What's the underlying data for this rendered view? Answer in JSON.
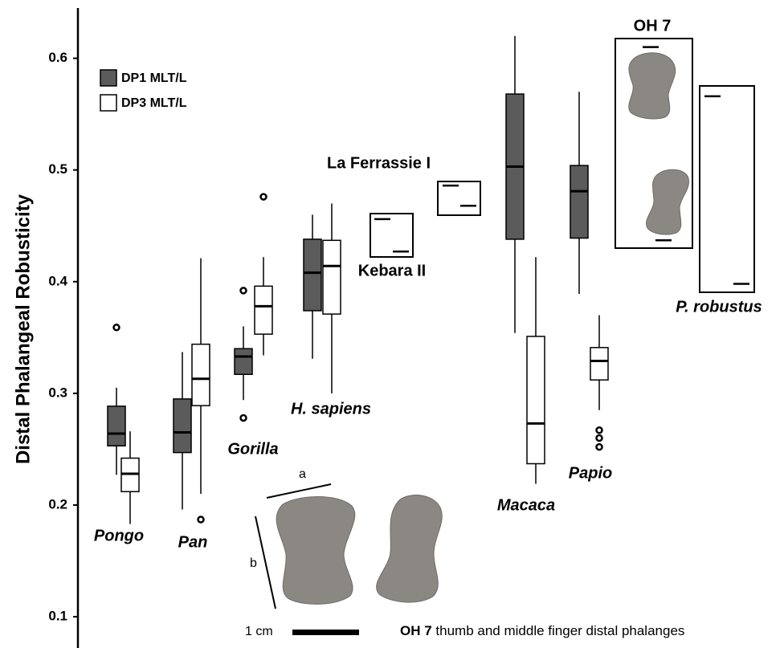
{
  "chart_data": {
    "type": "box",
    "ylabel": "Distal Phalangeal Robusticity",
    "ylim": [
      0.072,
      0.645
    ],
    "yticks": [
      0.1,
      0.2,
      0.3,
      0.4,
      0.5,
      0.6
    ],
    "categories": [
      "Pongo",
      "Pan",
      "Gorilla",
      "H. sapiens",
      "Macaca",
      "Papio"
    ],
    "series": [
      {
        "name": "DP1 MLT/L",
        "color": "#5b5b5b",
        "values": [
          {
            "whislo": 0.227,
            "q1": 0.253,
            "med": 0.264,
            "q3": 0.2885,
            "whishi": 0.305,
            "fliers": [
              0.359
            ]
          },
          {
            "whislo": 0.196,
            "q1": 0.247,
            "med": 0.265,
            "q3": 0.295,
            "whishi": 0.337,
            "fliers": []
          },
          {
            "whislo": 0.294,
            "q1": 0.317,
            "med": 0.333,
            "q3": 0.34,
            "whishi": 0.36,
            "fliers": [
              0.392,
              0.278
            ]
          },
          {
            "whislo": 0.331,
            "q1": 0.374,
            "med": 0.408,
            "q3": 0.438,
            "whishi": 0.46,
            "fliers": []
          },
          {
            "whislo": 0.354,
            "q1": 0.438,
            "med": 0.503,
            "q3": 0.568,
            "whishi": 0.62,
            "fliers": []
          },
          {
            "whislo": 0.389,
            "q1": 0.439,
            "med": 0.481,
            "q3": 0.504,
            "whishi": 0.57,
            "fliers": []
          }
        ]
      },
      {
        "name": "DP3 MLT/L",
        "color": "#ffffff",
        "values": [
          {
            "whislo": 0.183,
            "q1": 0.212,
            "med": 0.228,
            "q3": 0.242,
            "whishi": 0.266,
            "fliers": []
          },
          {
            "whislo": 0.21,
            "q1": 0.289,
            "med": 0.313,
            "q3": 0.344,
            "whishi": 0.421,
            "fliers": [
              0.187
            ]
          },
          {
            "whislo": 0.334,
            "q1": 0.353,
            "med": 0.378,
            "q3": 0.396,
            "whishi": 0.422,
            "fliers": [
              0.476
            ]
          },
          {
            "whislo": 0.3,
            "q1": 0.371,
            "med": 0.414,
            "q3": 0.437,
            "whishi": 0.47,
            "fliers": []
          },
          {
            "whislo": 0.219,
            "q1": 0.237,
            "med": 0.273,
            "q3": 0.351,
            "whishi": 0.422,
            "fliers": []
          },
          {
            "whislo": 0.285,
            "q1": 0.312,
            "med": 0.329,
            "q3": 0.341,
            "whishi": 0.37,
            "fliers": [
              0.267,
              0.26,
              0.252
            ]
          }
        ]
      }
    ],
    "fossils": [
      {
        "label": "Kebara II",
        "values": [
          0.456,
          0.427
        ]
      },
      {
        "label": "La Ferrassie I",
        "values": [
          0.486,
          0.468
        ]
      },
      {
        "label": "OH 7",
        "values": [
          0.61,
          0.437
        ]
      },
      {
        "label": "P. robustus",
        "values": [
          0.566,
          0.398
        ]
      }
    ],
    "annotations": [
      "a",
      "b",
      "1 cm"
    ],
    "caption": {
      "bold": "OH 7",
      "text": "thumb and middle finger distal phalanges"
    }
  }
}
